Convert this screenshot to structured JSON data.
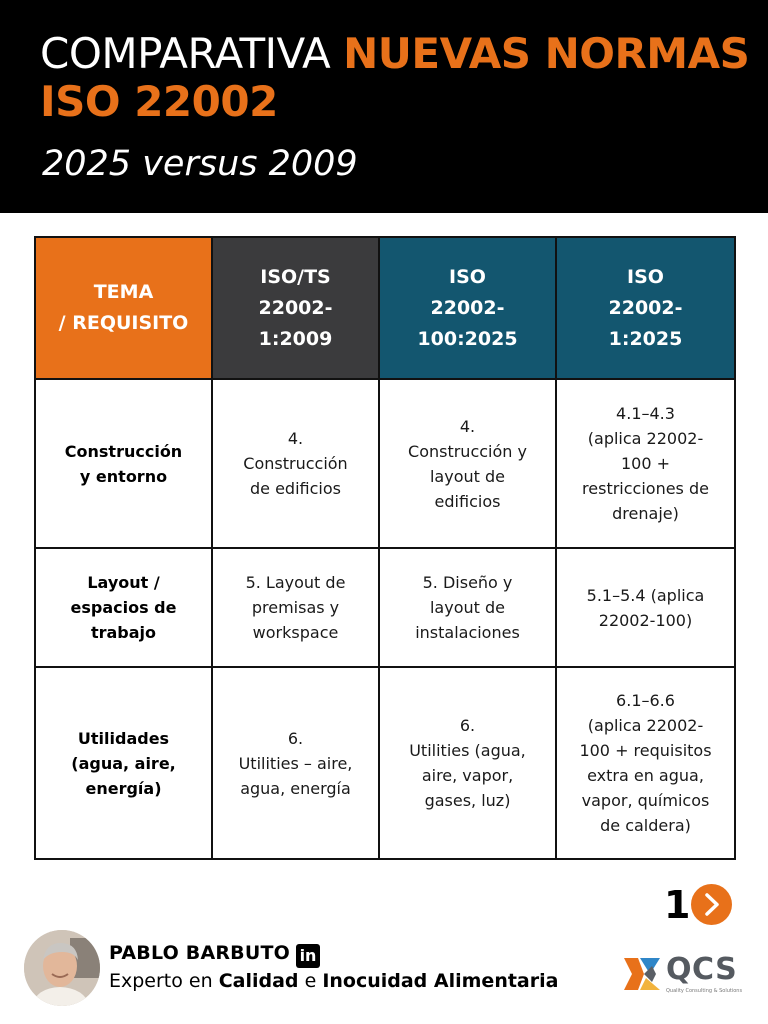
{
  "header": {
    "title_part1": "COMPARATIVA ",
    "title_part2": "NUEVAS NORMAS ISO 22002",
    "subtitle": "2025 versus 2009"
  },
  "table": {
    "headers": {
      "tema": [
        "TEMA",
        "/ REQUISITO"
      ],
      "iso_2009": [
        "ISO/TS",
        "22002-",
        "1:2009"
      ],
      "iso_100_2025": [
        "ISO",
        "22002-",
        "100:2025"
      ],
      "iso_1_2025": [
        "ISO",
        "22002-",
        "1:2025"
      ]
    },
    "rows": [
      {
        "topic": [
          "Construcción",
          "y entorno"
        ],
        "iso_2009": [
          "4.",
          "Construcción",
          "de edificios"
        ],
        "iso_100_2025": [
          "4.",
          "Construcción y",
          "layout de",
          "edificios"
        ],
        "iso_1_2025": [
          "4.1–4.3",
          "(aplica 22002-",
          "100 +",
          "restricciones de",
          "drenaje)"
        ]
      },
      {
        "topic": [
          "Layout /",
          "espacios de",
          "trabajo"
        ],
        "iso_2009": [
          "5. Layout de",
          "premisas y",
          "workspace"
        ],
        "iso_100_2025": [
          "5. Diseño y",
          "layout de",
          "instalaciones"
        ],
        "iso_1_2025": [
          "5.1–5.4 (aplica",
          "22002-100)"
        ]
      },
      {
        "topic": [
          "Utilidades",
          "(agua, aire,",
          "energía)"
        ],
        "iso_2009": [
          "6.",
          "Utilities – aire,",
          "agua, energía"
        ],
        "iso_100_2025": [
          "6.",
          "Utilities (agua,",
          "aire, vapor,",
          "gases, luz)"
        ],
        "iso_1_2025": [
          "6.1–6.6",
          "(aplica 22002-",
          "100 + requisitos",
          "extra en agua,",
          "vapor, químicos",
          "de caldera)"
        ]
      }
    ]
  },
  "pager": {
    "page_number": "1",
    "next_icon": "chevron-right-icon"
  },
  "author": {
    "name": "PABLO BARBUTO",
    "linkedin_icon": "in",
    "role_prefix": "Experto en ",
    "role_bold1": "Calidad",
    "role_mid": " e ",
    "role_bold2": "Inocuidad Alimentaria"
  },
  "logo": {
    "text": "QCS",
    "tagline": "Quality Consulting & Solutions"
  },
  "colors": {
    "accent_orange": "#e8711a",
    "header_black": "#000000",
    "col_2009_gray": "#3b3b3d",
    "col_2025_teal": "#13566f"
  }
}
